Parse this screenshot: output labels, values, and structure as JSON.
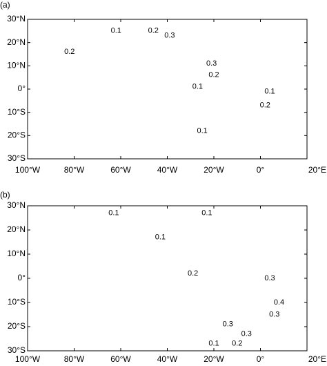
{
  "panels": [
    {
      "label": "(a)",
      "contour_labels": [
        0.2,
        0.1,
        0.2,
        0.3,
        0.3,
        0.2,
        0.1,
        0.1,
        0.2,
        0.1
      ]
    },
    {
      "label": "(b)",
      "contour_labels": [
        0.1,
        0.1,
        0.1,
        0.2,
        0.3,
        0.4,
        0.3,
        0.3,
        0.3,
        0.1,
        0.2
      ]
    }
  ],
  "lat_ticks": [
    {
      "value": 30,
      "label": "30°N"
    },
    {
      "value": 20,
      "label": "20°N"
    },
    {
      "value": 10,
      "label": "10°N"
    },
    {
      "value": 0,
      "label": "0°"
    },
    {
      "value": -10,
      "label": "10°S"
    },
    {
      "value": -20,
      "label": "20°S"
    },
    {
      "value": -30,
      "label": "30°S"
    }
  ],
  "lon_ticks": [
    {
      "value": -100,
      "label": "100°W"
    },
    {
      "value": -80,
      "label": "80°W"
    },
    {
      "value": -60,
      "label": "60°W"
    },
    {
      "value": -40,
      "label": "40°W"
    },
    {
      "value": -20,
      "label": "20°W"
    },
    {
      "value": 0,
      "label": "0°"
    },
    {
      "value": 20,
      "label": "20°E"
    }
  ]
}
